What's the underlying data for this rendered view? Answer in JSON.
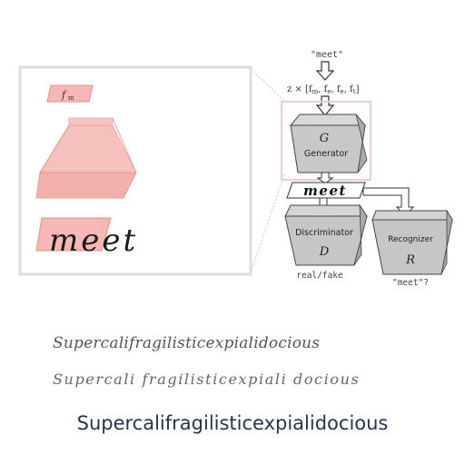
{
  "diagram": {
    "input_word": "\"meet\"",
    "z_expression": "z × [f",
    "z_sub_m": "m",
    "z_sub_e1": "e",
    "z_sub_e2": "e",
    "z_sub_t": "t",
    "generator_symbol": "G",
    "generator_label": "Generator",
    "generated_word": "meet",
    "discriminator_label": "Discriminator",
    "discriminator_symbol": "D",
    "discriminator_output": "real/fake",
    "recognizer_label": "Recognizer",
    "recognizer_symbol": "R",
    "recognizer_output": "\"meet\"?",
    "zoom_top_feature": "f",
    "zoom_top_sub": "m",
    "zoom_word": "meet"
  },
  "samples": {
    "handwritten_1": "Supercalifragilisticexpialidocious",
    "handwritten_2": "Supercali fragilisticexpiali docious",
    "typed": "Supercalifragilisticexpialidocious"
  },
  "colors": {
    "pink_fill": "#f5b8b4",
    "pink_stroke": "#e48f8a",
    "block_fill": "#c8c8c8",
    "block_dark": "#a9a9a9",
    "typed_text": "#23364f"
  }
}
